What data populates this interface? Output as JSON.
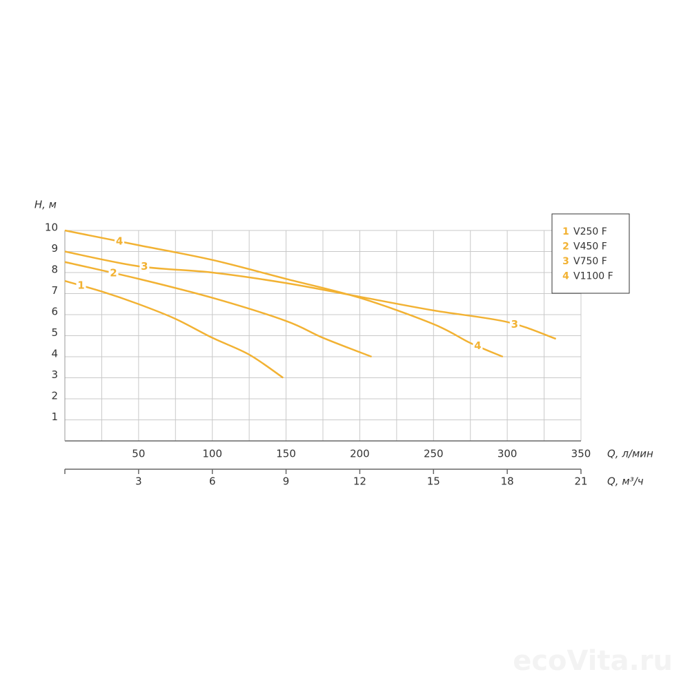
{
  "chart_data": {
    "type": "line",
    "ylabel": "H, м",
    "xlabel": "Q, л/мин",
    "x2label": "Q, м³/ч",
    "xlim": [
      0,
      350
    ],
    "xticks": [
      50,
      100,
      150,
      200,
      250,
      300,
      350
    ],
    "xgrid": [
      25,
      75,
      125,
      175,
      225,
      275,
      325
    ],
    "x2lim": [
      0,
      21
    ],
    "x2ticks": [
      3,
      6,
      9,
      12,
      15,
      18,
      21
    ],
    "ylim": [
      0,
      10
    ],
    "yticks": [
      1,
      2,
      3,
      4,
      5,
      6,
      7,
      8,
      9,
      10
    ],
    "grid": true,
    "legend": "upper right",
    "watermark": "ecoVita.ru",
    "series": [
      {
        "name": "V250 F",
        "label": "1",
        "color": "#f2b233",
        "x": [
          0,
          25,
          50,
          75,
          100,
          125,
          148
        ],
        "values": [
          7.6,
          7.1,
          6.5,
          5.8,
          4.9,
          4.1,
          3.0
        ]
      },
      {
        "name": "V450 F",
        "label": "2",
        "color": "#f2b233",
        "x": [
          0,
          50,
          100,
          150,
          175,
          208
        ],
        "values": [
          8.5,
          7.7,
          6.8,
          5.7,
          4.9,
          4.0
        ]
      },
      {
        "name": "V750 F",
        "label": "3",
        "color": "#f2b233",
        "x": [
          0,
          50,
          100,
          150,
          200,
          250,
          300,
          333
        ],
        "values": [
          9.0,
          8.3,
          8.0,
          7.5,
          6.85,
          6.2,
          5.65,
          4.85
        ]
      },
      {
        "name": "V1100 F",
        "label": "4",
        "color": "#f2b233",
        "x": [
          0,
          50,
          100,
          150,
          200,
          250,
          275,
          297
        ],
        "values": [
          10.0,
          9.3,
          8.6,
          7.7,
          6.8,
          5.55,
          4.65,
          4.0
        ]
      }
    ]
  }
}
